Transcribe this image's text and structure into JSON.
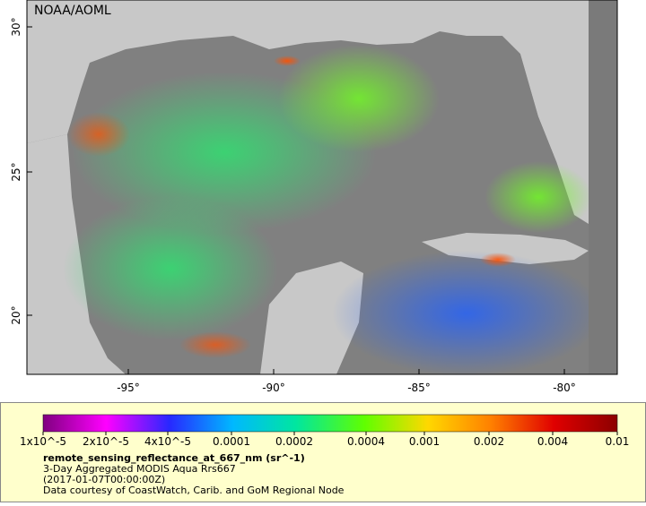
{
  "map": {
    "credit": "NOAA/AOML",
    "lat_labels": [
      "30°",
      "25°",
      "20°"
    ],
    "lon_labels": [
      "-95°",
      "-90°",
      "-85°",
      "-80°"
    ]
  },
  "legend": {
    "ticks": [
      "1x10^-5",
      "2x10^-5",
      "4x10^-5",
      "0.0001",
      "0.0002",
      "0.0004",
      "0.001",
      "0.002",
      "0.004",
      "0.01"
    ],
    "title": "remote_sensing_reflectance_at_667_nm (sr^-1)",
    "lines": [
      "3-Day Aggregated MODIS Aqua Rrs667",
      "(2017-01-07T00:00:00Z)",
      "Data courtesy of CoastWatch, Carib. and GoM Regional Node"
    ]
  }
}
